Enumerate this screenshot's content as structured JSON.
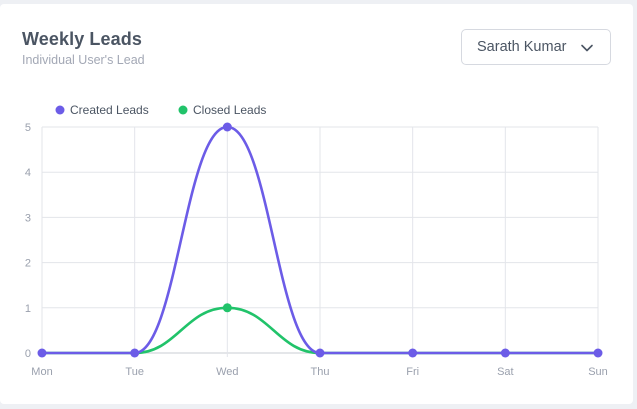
{
  "header": {
    "title": "Weekly Leads",
    "subtitle": "Individual User's Lead"
  },
  "user_select": {
    "value": "Sarath Kumar"
  },
  "chart_data": {
    "type": "line",
    "title": "Weekly Leads",
    "subtitle": "Individual User's Lead",
    "xlabel": "",
    "ylabel": "",
    "categories": [
      "Mon",
      "Tue",
      "Wed",
      "Thu",
      "Fri",
      "Sat",
      "Sun"
    ],
    "yticks": [
      "0",
      "1",
      "2",
      "3",
      "4",
      "5"
    ],
    "ylim": [
      0,
      5
    ],
    "grid": true,
    "smooth": true,
    "legend_position": "top-left",
    "series": [
      {
        "name": "Created Leads",
        "color": "#6c5ce7",
        "values": [
          0,
          0,
          5,
          0,
          0,
          0,
          0
        ]
      },
      {
        "name": "Closed Leads",
        "color": "#21c36a",
        "values": [
          0,
          0,
          1,
          0,
          0,
          0,
          0
        ]
      }
    ]
  }
}
